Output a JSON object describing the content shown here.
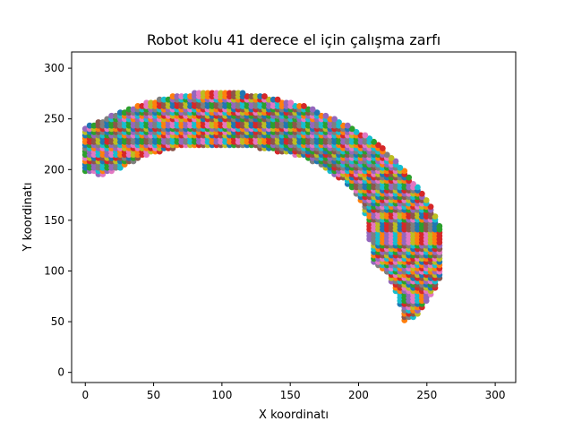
{
  "chart_data": {
    "type": "scatter",
    "title": "Robot kolu 41 derece el için çalışma zarfı",
    "xlabel": "X koordinatı",
    "ylabel": "Y koordinatı",
    "xlim": [
      -10,
      315
    ],
    "ylim": [
      -10,
      316
    ],
    "xticks": [
      0,
      50,
      100,
      150,
      200,
      250,
      300
    ],
    "yticks": [
      0,
      50,
      100,
      150,
      200,
      250,
      300
    ],
    "grid": false,
    "legend": "none",
    "marker": "circle",
    "palette": [
      "#1f77b4",
      "#ff7f0e",
      "#2ca02c",
      "#d62728",
      "#9467bd",
      "#8c564b",
      "#e377c2",
      "#7f7f7f",
      "#bcbd22",
      "#17becf"
    ],
    "envelope": {
      "description_of_region": "dense point cloud forming an arc-shaped reachable workspace",
      "outer_arc_points": [
        [
          0,
          242
        ],
        [
          20,
          254
        ],
        [
          40,
          264
        ],
        [
          60,
          272
        ],
        [
          80,
          276
        ],
        [
          100,
          277
        ],
        [
          120,
          275
        ],
        [
          140,
          270
        ],
        [
          160,
          263
        ],
        [
          180,
          252
        ],
        [
          200,
          238
        ],
        [
          215,
          225
        ],
        [
          230,
          205
        ],
        [
          245,
          180
        ],
        [
          255,
          160
        ],
        [
          262,
          135
        ],
        [
          262,
          110
        ]
      ],
      "inner_arc_points": [
        [
          0,
          196
        ],
        [
          15,
          195
        ],
        [
          25,
          200
        ],
        [
          40,
          212
        ],
        [
          60,
          220
        ],
        [
          80,
          223
        ],
        [
          100,
          223
        ],
        [
          120,
          222
        ],
        [
          140,
          218
        ],
        [
          160,
          212
        ],
        [
          175,
          202
        ],
        [
          190,
          188
        ],
        [
          200,
          172
        ],
        [
          207,
          150
        ],
        [
          208,
          130
        ],
        [
          208,
          108
        ]
      ],
      "tail_points": [
        [
          210,
          108
        ],
        [
          222,
          95
        ],
        [
          230,
          70
        ],
        [
          232,
          48
        ],
        [
          245,
          58
        ],
        [
          255,
          80
        ],
        [
          262,
          100
        ]
      ]
    }
  }
}
